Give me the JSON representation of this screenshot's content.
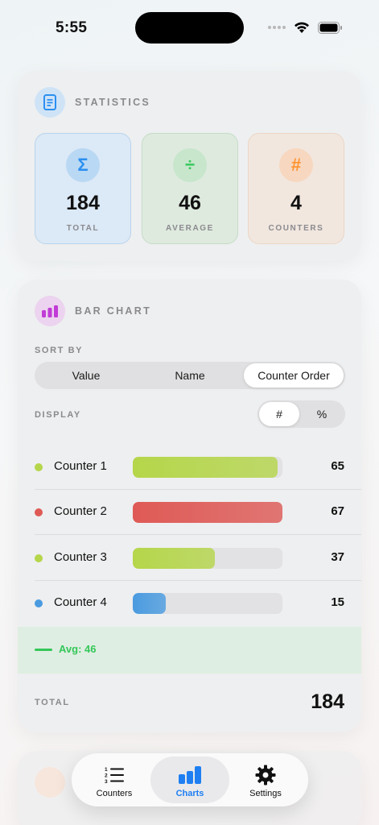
{
  "status_bar": {
    "time": "5:55"
  },
  "statistics": {
    "title": "STATISTICS",
    "tiles": [
      {
        "icon": "sigma-icon",
        "symbol": "Σ",
        "value": "184",
        "label": "TOTAL",
        "color": "#2b8ff0"
      },
      {
        "icon": "divide-icon",
        "symbol": "÷",
        "value": "46",
        "label": "AVERAGE",
        "color": "#34c759"
      },
      {
        "icon": "hash-icon",
        "symbol": "#",
        "value": "4",
        "label": "COUNTERS",
        "color": "#ff9330"
      }
    ]
  },
  "bar_chart": {
    "title": "BAR CHART",
    "sort_by_label": "SORT BY",
    "sort_options": [
      "Value",
      "Name",
      "Counter Order"
    ],
    "sort_selected": "Counter Order",
    "display_label": "DISPLAY",
    "display_options": [
      "#",
      "%"
    ],
    "display_selected": "#",
    "rows": [
      {
        "name": "Counter 1",
        "value": "65",
        "fraction": 0.97,
        "color": "#b5d64a"
      },
      {
        "name": "Counter 2",
        "value": "67",
        "fraction": 1.0,
        "color": "#df5a56"
      },
      {
        "name": "Counter 3",
        "value": "37",
        "fraction": 0.55,
        "color": "#b5d64a"
      },
      {
        "name": "Counter 4",
        "value": "15",
        "fraction": 0.22,
        "color": "#4a9be0"
      }
    ],
    "average_label": "Avg: 46",
    "total_label": "TOTAL",
    "total_value": "184"
  },
  "tab_bar": {
    "tabs": [
      {
        "label": "Counters",
        "icon": "list-numbered-icon"
      },
      {
        "label": "Charts",
        "icon": "bar-chart-icon",
        "active": true
      },
      {
        "label": "Settings",
        "icon": "gear-icon"
      }
    ]
  },
  "colors": {
    "accent": "#1f7ff2",
    "avg_green": "#34c759"
  }
}
